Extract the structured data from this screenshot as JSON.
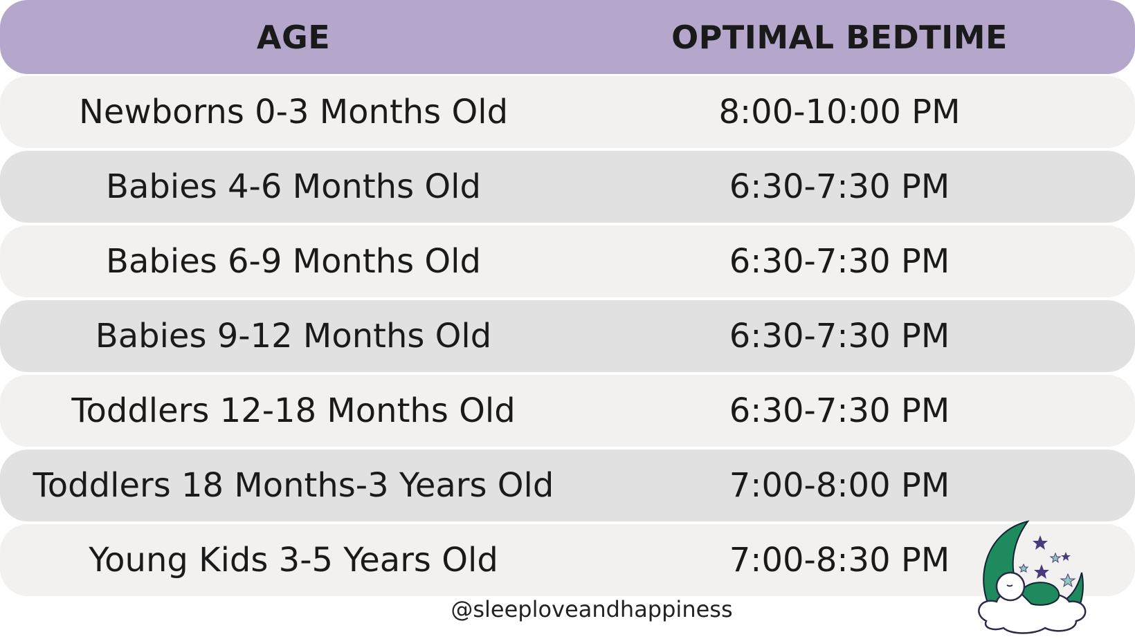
{
  "header": {
    "age": "AGE",
    "bedtime": "OPTIMAL BEDTIME"
  },
  "rows": [
    {
      "age": "Newborns 0-3 Months Old",
      "bedtime": "8:00-10:00 PM"
    },
    {
      "age": "Babies 4-6 Months Old",
      "bedtime": "6:30-7:30 PM"
    },
    {
      "age": "Babies 6-9 Months Old",
      "bedtime": "6:30-7:30 PM"
    },
    {
      "age": "Babies 9-12 Months Old",
      "bedtime": "6:30-7:30 PM"
    },
    {
      "age": "Toddlers 12-18 Months Old",
      "bedtime": "6:30-7:30 PM"
    },
    {
      "age": "Toddlers 18 Months-3 Years Old",
      "bedtime": "7:00-8:00 PM"
    },
    {
      "age": "Young Kids 3-5 Years Old",
      "bedtime": "7:00-8:30 PM"
    }
  ],
  "footer": {
    "handle": "@sleeploveandhappiness"
  },
  "colors": {
    "header": "#b5a7cc",
    "row_light": "#f2f1ef",
    "row_dark": "#e0e1e0",
    "logo_green": "#1e8a5e",
    "logo_purple": "#4b3a7a"
  },
  "logo": {
    "icon": "moon-sleeping-baby-logo"
  }
}
